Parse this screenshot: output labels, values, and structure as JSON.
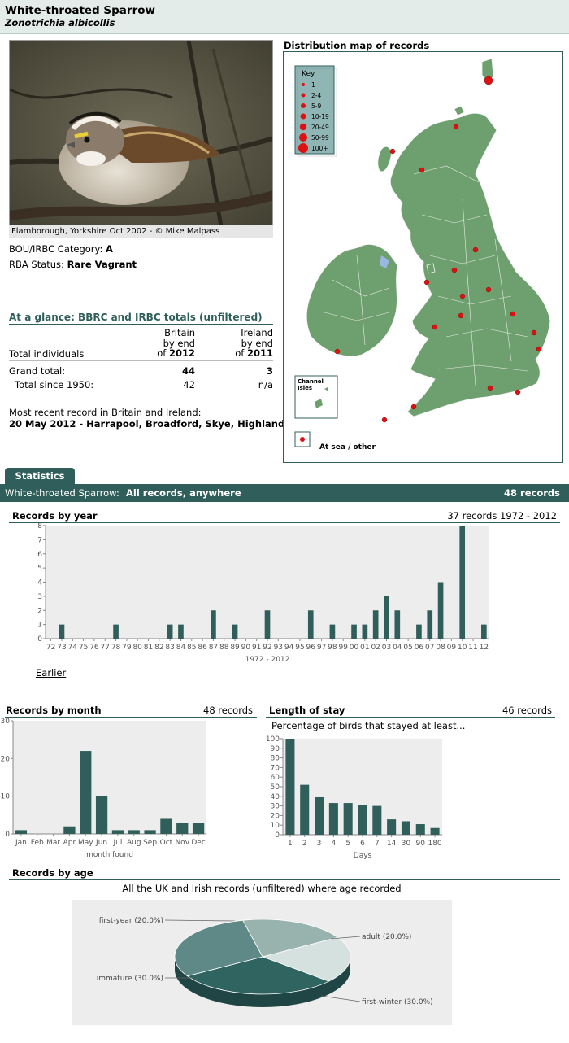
{
  "header": {
    "common_name": "White-throated Sparrow",
    "latin_name": "Zonotrichia albicollis"
  },
  "photo": {
    "caption": "Flamborough, Yorkshire Oct 2002 - © Mike Malpass"
  },
  "status": {
    "bou_label": "BOU/IRBC Category:",
    "bou_value": "A",
    "rba_label": "RBA Status:",
    "rba_value": "Rare Vagrant"
  },
  "glance": {
    "title": "At a glance: BBRC and IRBC totals (unfiltered)",
    "col_britain": [
      "Britain",
      "by end",
      "of",
      "2012"
    ],
    "col_ireland": [
      "Ireland",
      "by end",
      "of",
      "2011"
    ],
    "total_individuals": "Total individuals",
    "grand_total_label": "Grand total:",
    "grand_britain": "44",
    "grand_ireland": "3",
    "since_label": "Total since 1950:",
    "since_britain": "42",
    "since_ireland": "n/a",
    "recent_label": "Most recent record in Britain and Ireland:",
    "recent_value": "20 May 2012  - Harrapool, Broadford, Skye, Highland"
  },
  "map": {
    "title": "Distribution map of records",
    "key_title": "Key",
    "key_items": [
      "1",
      "2-4",
      "5-9",
      "10-19",
      "20-49",
      "50-99",
      "100+"
    ],
    "channel_label": "Channel Isles",
    "at_sea_label": "At sea / other",
    "land_color": "#6e9f6e",
    "dot_color": "#dd1111"
  },
  "stats": {
    "tab_label": "Statistics",
    "strip_label_a": "White-throated Sparrow:",
    "strip_label_b": "All records, anywhere",
    "strip_count": "48 records"
  },
  "year_chart": {
    "heading": "Records by year",
    "summary": "37 records 1972 - 2012",
    "earlier_link": "Earlier"
  },
  "month_chart": {
    "heading": "Records by month",
    "summary": "48 records"
  },
  "stay_chart": {
    "heading": "Length of stay",
    "summary": "46 records",
    "subtitle": "Percentage of birds that stayed at least..."
  },
  "age_chart": {
    "heading": "Records by age",
    "subtitle": "All the UK and Irish records (unfiltered) where age recorded"
  },
  "chart_data": [
    {
      "type": "bar",
      "xlabel": "1972 - 2012",
      "ylim": [
        0,
        8
      ],
      "yticks": [
        0,
        1,
        2,
        3,
        4,
        5,
        6,
        7,
        8
      ],
      "categories": [
        "72",
        "73",
        "74",
        "75",
        "76",
        "77",
        "78",
        "79",
        "80",
        "81",
        "82",
        "83",
        "84",
        "85",
        "86",
        "87",
        "88",
        "89",
        "90",
        "91",
        "92",
        "93",
        "94",
        "95",
        "96",
        "97",
        "98",
        "99",
        "00",
        "01",
        "02",
        "03",
        "04",
        "05",
        "06",
        "07",
        "08",
        "09",
        "10",
        "11",
        "12"
      ],
      "values": [
        0,
        1,
        0,
        0,
        0,
        0,
        1,
        0,
        0,
        0,
        0,
        1,
        1,
        0,
        0,
        2,
        0,
        1,
        0,
        0,
        2,
        0,
        0,
        0,
        2,
        0,
        1,
        0,
        1,
        1,
        2,
        3,
        2,
        0,
        1,
        2,
        4,
        0,
        8,
        0,
        1
      ],
      "color": "#305f5b"
    },
    {
      "type": "bar",
      "xlabel": "month found",
      "ylim": [
        0,
        30
      ],
      "yticks": [
        0,
        10,
        20,
        30
      ],
      "categories": [
        "Jan",
        "Feb",
        "Mar",
        "Apr",
        "May",
        "Jun",
        "Jul",
        "Aug",
        "Sep",
        "Oct",
        "Nov",
        "Dec"
      ],
      "values": [
        1,
        0,
        0,
        2,
        22,
        10,
        1,
        1,
        1,
        4,
        3,
        3
      ],
      "color": "#305f5b"
    },
    {
      "type": "bar",
      "xlabel": "Days",
      "ylim": [
        0,
        100
      ],
      "yticks": [
        0,
        10,
        20,
        30,
        40,
        50,
        60,
        70,
        80,
        90,
        100
      ],
      "categories": [
        "1",
        "2",
        "3",
        "4",
        "5",
        "6",
        "7",
        "14",
        "30",
        "90",
        "180"
      ],
      "values": [
        100,
        52,
        39,
        33,
        33,
        31,
        30,
        16,
        14,
        11,
        7
      ],
      "color": "#305f5b"
    },
    {
      "type": "pie",
      "slices": [
        {
          "label": "first-year (20.0%)",
          "value": 20.0,
          "color": "#98b2ae"
        },
        {
          "label": "adult (20.0%)",
          "value": 20.0,
          "color": "#d5e1df"
        },
        {
          "label": "first-winter (30.0%)",
          "value": 30.0,
          "color": "#2f6461"
        },
        {
          "label": "immature (30.0%)",
          "value": 30.0,
          "color": "#5f8986"
        }
      ]
    }
  ]
}
